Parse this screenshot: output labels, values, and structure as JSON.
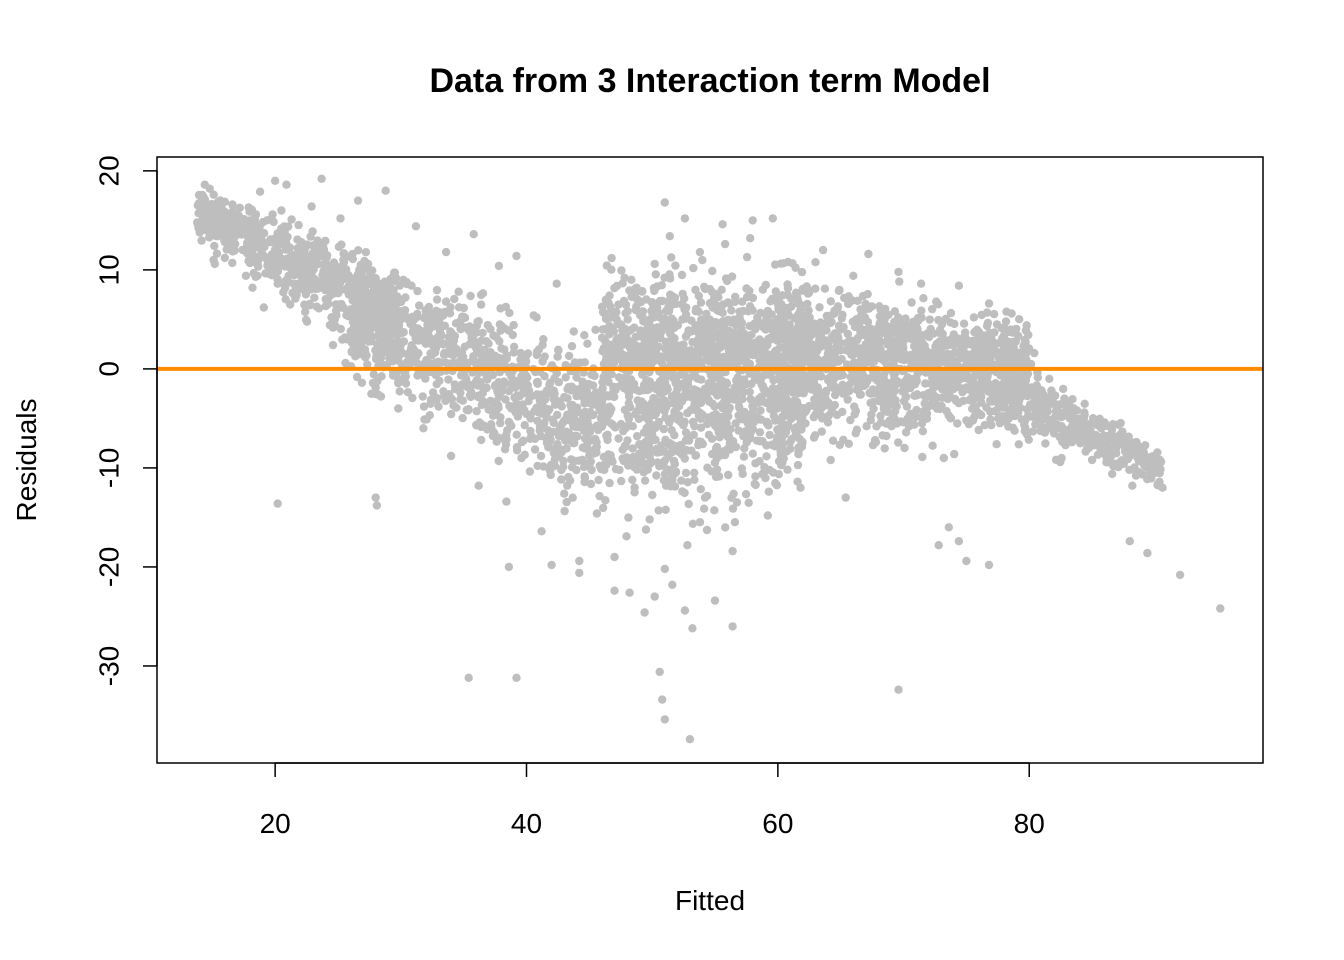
{
  "chart_data": {
    "type": "scatter",
    "title": "Data from 3 Interaction term Model",
    "xlabel": "Fitted",
    "ylabel": "Residuals",
    "xlim": [
      10.6,
      98.6
    ],
    "ylim": [
      -39.8,
      21.4
    ],
    "xticks": [
      20,
      40,
      60,
      80
    ],
    "xtick_labels": [
      "20",
      "40",
      "60",
      "80"
    ],
    "yticks": [
      -30,
      -20,
      -10,
      0,
      10,
      20
    ],
    "ytick_labels": [
      "-30",
      "-20",
      "-10",
      "0",
      "10",
      "20"
    ],
    "grid": false,
    "legend": "none",
    "point_color": "#bebebe",
    "reference_line": {
      "y": 0,
      "color": "#ff8c00"
    },
    "series": [
      {
        "points": [
          [
            13.8,
            14.8
          ],
          [
            14.2,
            15.0
          ],
          [
            14.4,
            18.6
          ],
          [
            14.8,
            18.2
          ],
          [
            15.0,
            16.2
          ],
          [
            15.0,
            14.2
          ],
          [
            15.1,
            11.0
          ],
          [
            15.2,
            10.6
          ],
          [
            15.4,
            13.4
          ],
          [
            16.0,
            12.8
          ],
          [
            16.6,
            16.6
          ],
          [
            17.6,
            14.0
          ],
          [
            18.0,
            15.0
          ],
          [
            18.2,
            8.2
          ],
          [
            18.6,
            9.4
          ],
          [
            18.8,
            17.9
          ],
          [
            19.1,
            6.2
          ],
          [
            19.6,
            12.8
          ],
          [
            19.8,
            15.6
          ],
          [
            20.0,
            19.0
          ],
          [
            20.2,
            8.6
          ],
          [
            20.5,
            16.0
          ],
          [
            20.9,
            18.6
          ],
          [
            21.2,
            6.5
          ],
          [
            21.8,
            12.2
          ],
          [
            22.4,
            10.4
          ],
          [
            22.9,
            16.4
          ],
          [
            23.4,
            8.2
          ],
          [
            23.7,
            19.2
          ],
          [
            24.2,
            9.5
          ],
          [
            24.6,
            2.4
          ],
          [
            25.2,
            15.2
          ],
          [
            25.6,
            0.6
          ],
          [
            26.0,
            6.0
          ],
          [
            26.6,
            17.0
          ],
          [
            26.9,
            -1.4
          ],
          [
            27.4,
            10.6
          ],
          [
            27.8,
            4.2
          ],
          [
            28.2,
            -2.6
          ],
          [
            28.8,
            18.0
          ],
          [
            29.2,
            7.2
          ],
          [
            29.8,
            -4.0
          ],
          [
            30.2,
            9.0
          ],
          [
            30.8,
            2.0
          ],
          [
            31.2,
            14.4
          ],
          [
            31.8,
            -6.0
          ],
          [
            32.4,
            5.4
          ],
          [
            33.0,
            -3.8
          ],
          [
            33.6,
            11.8
          ],
          [
            34.0,
            -8.8
          ],
          [
            34.6,
            7.8
          ],
          [
            35.2,
            -1.0
          ],
          [
            35.8,
            13.6
          ],
          [
            36.2,
            -11.8
          ],
          [
            36.8,
            2.8
          ],
          [
            37.4,
            -6.4
          ],
          [
            37.8,
            10.4
          ],
          [
            38.4,
            -13.4
          ],
          [
            38.8,
            -4.0
          ],
          [
            39.2,
            11.4
          ],
          [
            39.6,
            -9.0
          ],
          [
            40.2,
            -2.2
          ],
          [
            40.8,
            5.2
          ],
          [
            41.2,
            -16.4
          ],
          [
            41.8,
            -6.4
          ],
          [
            42.4,
            8.6
          ],
          [
            43.0,
            -12.6
          ],
          [
            43.6,
            -1.8
          ],
          [
            44.2,
            -19.4
          ],
          [
            44.6,
            3.4
          ],
          [
            45.0,
            -8.2
          ],
          [
            45.6,
            -14.6
          ],
          [
            46.0,
            -3.4
          ],
          [
            46.4,
            6.8
          ],
          [
            47.0,
            -19.0
          ],
          [
            47.4,
            -10.2
          ],
          [
            47.8,
            2.6
          ],
          [
            48.2,
            -22.6
          ],
          [
            48.8,
            -6.8
          ],
          [
            49.2,
            7.8
          ],
          [
            49.8,
            -15.2
          ],
          [
            50.2,
            10.6
          ],
          [
            50.6,
            -1.6
          ],
          [
            51.0,
            -20.2
          ],
          [
            51.4,
            13.4
          ],
          [
            51.8,
            -9.6
          ],
          [
            52.4,
            5.0
          ],
          [
            52.8,
            -17.8
          ],
          [
            53.2,
            0.8
          ],
          [
            53.8,
            11.8
          ],
          [
            54.2,
            -13.0
          ],
          [
            54.8,
            6.2
          ],
          [
            55.2,
            -6.0
          ],
          [
            55.8,
            12.6
          ],
          [
            56.4,
            -18.4
          ],
          [
            56.8,
            2.6
          ],
          [
            57.2,
            -10.6
          ],
          [
            57.8,
            13.2
          ],
          [
            58.4,
            -3.4
          ],
          [
            58.8,
            8.0
          ],
          [
            59.2,
            -14.8
          ],
          [
            59.8,
            4.4
          ],
          [
            60.4,
            -7.6
          ],
          [
            60.8,
            10.8
          ],
          [
            61.4,
            -1.4
          ],
          [
            61.8,
            -12.0
          ],
          [
            62.4,
            7.6
          ],
          [
            63.0,
            -4.6
          ],
          [
            63.6,
            12.0
          ],
          [
            64.2,
            -9.2
          ],
          [
            64.8,
            3.2
          ],
          [
            65.4,
            -13.0
          ],
          [
            66.0,
            9.4
          ],
          [
            66.6,
            -2.6
          ],
          [
            67.2,
            11.6
          ],
          [
            67.8,
            -7.4
          ],
          [
            68.4,
            5.8
          ],
          [
            69.0,
            -1.4
          ],
          [
            69.6,
            9.8
          ],
          [
            70.2,
            -6.4
          ],
          [
            70.8,
            4.2
          ],
          [
            71.4,
            8.6
          ],
          [
            72.0,
            -3.8
          ],
          [
            72.6,
            6.8
          ],
          [
            73.2,
            -9.0
          ],
          [
            73.8,
            2.6
          ],
          [
            74.4,
            8.4
          ],
          [
            75.0,
            -5.2
          ],
          [
            75.6,
            5.2
          ],
          [
            76.2,
            -1.4
          ],
          [
            76.8,
            6.6
          ],
          [
            77.4,
            -7.6
          ],
          [
            78.0,
            3.4
          ],
          [
            78.6,
            5.6
          ],
          [
            79.2,
            -3.2
          ],
          [
            79.8,
            4.4
          ],
          [
            80.4,
            1.6
          ],
          [
            81.0,
            -2.8
          ],
          [
            81.6,
            -1.0
          ],
          [
            82.2,
            -5.6
          ],
          [
            82.8,
            -3.0
          ],
          [
            83.4,
            -7.4
          ],
          [
            84.2,
            -5.0
          ],
          [
            85.0,
            -9.2
          ],
          [
            85.8,
            -7.0
          ],
          [
            86.6,
            -10.6
          ],
          [
            87.4,
            -6.4
          ],
          [
            88.2,
            -11.8
          ],
          [
            89.0,
            -8.6
          ],
          [
            89.6,
            -10.4
          ],
          [
            90.4,
            -9.2
          ],
          [
            90.6,
            -12.0
          ],
          [
            20.2,
            -13.6
          ],
          [
            28.0,
            -13.0
          ],
          [
            28.1,
            -13.8
          ],
          [
            35.4,
            -31.2
          ],
          [
            39.2,
            -31.2
          ],
          [
            50.6,
            -30.6
          ],
          [
            50.8,
            -33.4
          ],
          [
            51.0,
            -35.4
          ],
          [
            53.0,
            -37.4
          ],
          [
            69.6,
            -32.4
          ],
          [
            95.2,
            -24.2
          ],
          [
            92.0,
            -20.8
          ],
          [
            89.4,
            -18.6
          ],
          [
            88.0,
            -17.4
          ],
          [
            76.8,
            -19.8
          ],
          [
            73.6,
            -16.0
          ],
          [
            74.4,
            -17.4
          ],
          [
            72.8,
            -17.8
          ],
          [
            75.0,
            -19.4
          ],
          [
            56.4,
            -26.0
          ],
          [
            53.2,
            -26.2
          ],
          [
            52.6,
            -24.4
          ],
          [
            55.0,
            -23.4
          ],
          [
            50.2,
            -23.0
          ],
          [
            49.4,
            -24.6
          ],
          [
            51.6,
            -21.8
          ],
          [
            47.0,
            -22.4
          ],
          [
            44.2,
            -20.6
          ],
          [
            42.0,
            -19.8
          ],
          [
            38.6,
            -20.0
          ],
          [
            51.0,
            16.8
          ],
          [
            52.6,
            15.2
          ],
          [
            55.6,
            14.6
          ],
          [
            58.0,
            15.0
          ],
          [
            59.6,
            15.2
          ],
          [
            46.6,
            7.4
          ],
          [
            47.8,
            9.2
          ]
        ]
      }
    ],
    "clusters": [
      {
        "x": [
          13.8,
          30.0
        ],
        "y0": [
          16.0,
          5.0
        ],
        "ylow": [
          12.0,
          -3.0
        ],
        "yhigh": [
          19.0,
          12.0
        ],
        "n": 700
      },
      {
        "x": [
          26.0,
          46.0
        ],
        "y0": [
          6.0,
          -6.0
        ],
        "ylow": [
          -4.0,
          -18.0
        ],
        "yhigh": [
          12.0,
          6.0
        ],
        "n": 900
      },
      {
        "x": [
          46.0,
          62.0
        ],
        "y0": [
          0.0,
          0.0
        ],
        "ylow": [
          -22.0,
          -16.0
        ],
        "yhigh": [
          13.0,
          13.0
        ],
        "n": 1400
      },
      {
        "x": [
          60.0,
          80.0
        ],
        "y0": [
          2.0,
          0.0
        ],
        "ylow": [
          -12.0,
          -8.0
        ],
        "yhigh": [
          12.0,
          6.0
        ],
        "n": 1300
      },
      {
        "x": [
          78.0,
          90.5
        ],
        "y0": [
          -2.0,
          -10.0
        ],
        "ylow": [
          -9.0,
          -13.0
        ],
        "yhigh": [
          3.0,
          -8.0
        ],
        "n": 350
      }
    ]
  }
}
